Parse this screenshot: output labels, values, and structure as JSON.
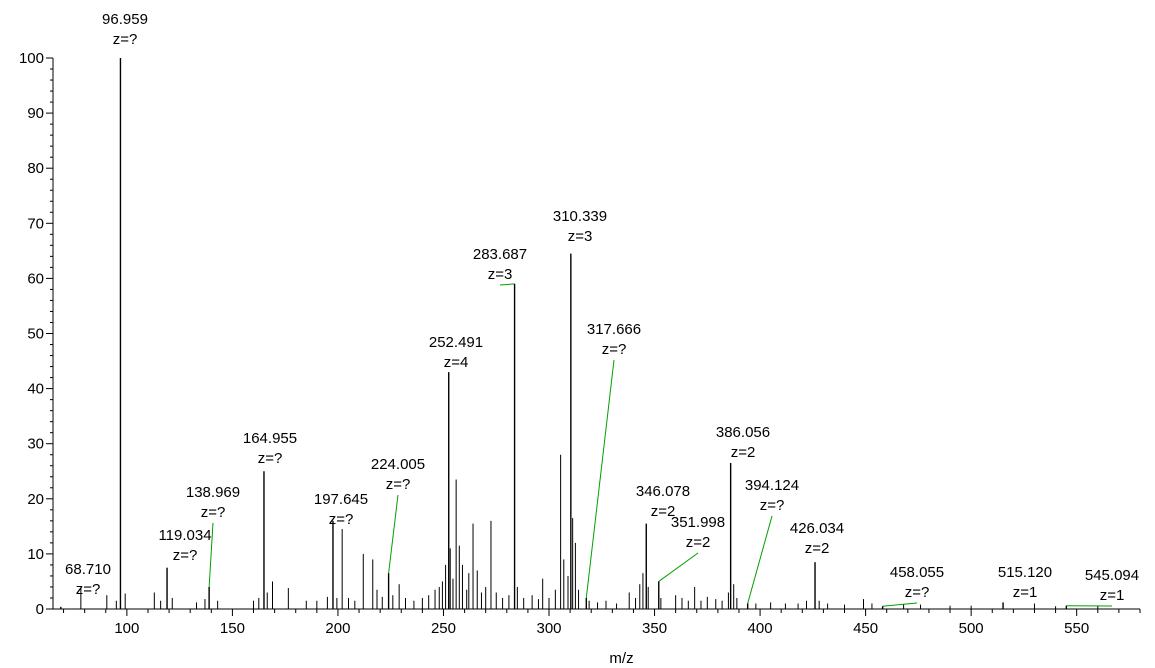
{
  "chart_data": {
    "type": "bar",
    "xlabel": "m/z",
    "ylabel": "",
    "xlim": [
      65,
      580
    ],
    "ylim": [
      0,
      100
    ],
    "x_ticks": [
      100,
      150,
      200,
      250,
      300,
      350,
      400,
      450,
      500,
      550
    ],
    "y_ticks": [
      0,
      10,
      20,
      30,
      40,
      50,
      60,
      70,
      80,
      90,
      100
    ],
    "grid": false,
    "colors": {
      "peak": "#000000",
      "leader": "#00a000"
    },
    "labeled_peaks": [
      {
        "mz": 68.71,
        "intensity": 0.4,
        "label": "68.710",
        "charge": "z=?",
        "leader": false
      },
      {
        "mz": 96.959,
        "intensity": 100,
        "label": "96.959",
        "charge": "z=?",
        "leader": false
      },
      {
        "mz": 119.034,
        "intensity": 7.5,
        "label": "119.034",
        "charge": "z=?",
        "leader": false
      },
      {
        "mz": 138.969,
        "intensity": 4.0,
        "label": "138.969",
        "charge": "z=?",
        "leader": true
      },
      {
        "mz": 164.955,
        "intensity": 25,
        "label": "164.955",
        "charge": "z=?",
        "leader": false
      },
      {
        "mz": 197.645,
        "intensity": 16,
        "label": "197.645",
        "charge": "z=?",
        "leader": false
      },
      {
        "mz": 224.005,
        "intensity": 6.5,
        "label": "224.005",
        "charge": "z=?",
        "leader": true
      },
      {
        "mz": 252.491,
        "intensity": 43,
        "label": "252.491",
        "charge": "z=4",
        "leader": false
      },
      {
        "mz": 283.687,
        "intensity": 59,
        "label": "283.687",
        "charge": "z=3",
        "leader": true
      },
      {
        "mz": 310.339,
        "intensity": 64.5,
        "label": "310.339",
        "charge": "z=3",
        "leader": false
      },
      {
        "mz": 317.666,
        "intensity": 2.0,
        "label": "317.666",
        "charge": "z=?",
        "leader": true
      },
      {
        "mz": 346.078,
        "intensity": 15.5,
        "label": "346.078",
        "charge": "z=2",
        "leader": false
      },
      {
        "mz": 351.998,
        "intensity": 5.0,
        "label": "351.998",
        "charge": "z=2",
        "leader": true
      },
      {
        "mz": 386.056,
        "intensity": 26.5,
        "label": "386.056",
        "charge": "z=2",
        "leader": false
      },
      {
        "mz": 394.124,
        "intensity": 1.0,
        "label": "394.124",
        "charge": "z=?",
        "leader": true
      },
      {
        "mz": 426.034,
        "intensity": 8.5,
        "label": "426.034",
        "charge": "z=2",
        "leader": false
      },
      {
        "mz": 458.055,
        "intensity": 0.5,
        "label": "458.055",
        "charge": "z=?",
        "leader": true
      },
      {
        "mz": 515.12,
        "intensity": 1.2,
        "label": "515.120",
        "charge": "z=1",
        "leader": false
      },
      {
        "mz": 545.094,
        "intensity": 0.6,
        "label": "545.094",
        "charge": "z=1",
        "leader": true
      }
    ],
    "other_peaks": [
      [
        78.2,
        3.8
      ],
      [
        90.5,
        2.5
      ],
      [
        95.0,
        1.5
      ],
      [
        99.2,
        2.8
      ],
      [
        113.0,
        3.0
      ],
      [
        116.0,
        1.5
      ],
      [
        121.5,
        2.0
      ],
      [
        133.0,
        1.2
      ],
      [
        137.0,
        1.8
      ],
      [
        143.0,
        1.5
      ],
      [
        160.0,
        1.5
      ],
      [
        162.5,
        2.0
      ],
      [
        166.5,
        3.0
      ],
      [
        169.0,
        5.0
      ],
      [
        176.5,
        3.8
      ],
      [
        185.0,
        1.5
      ],
      [
        190.0,
        1.5
      ],
      [
        195.0,
        2.2
      ],
      [
        199.5,
        2.0
      ],
      [
        202.0,
        14.5
      ],
      [
        205.0,
        2.0
      ],
      [
        208.0,
        1.5
      ],
      [
        212.0,
        10.0
      ],
      [
        216.5,
        9.0
      ],
      [
        218.5,
        3.5
      ],
      [
        221.0,
        2.2
      ],
      [
        226.0,
        2.5
      ],
      [
        229.0,
        4.5
      ],
      [
        232.0,
        2.0
      ],
      [
        236.0,
        1.5
      ],
      [
        240.0,
        2.0
      ],
      [
        243.0,
        2.5
      ],
      [
        246.0,
        3.5
      ],
      [
        248.0,
        4.0
      ],
      [
        249.5,
        5.0
      ],
      [
        251.0,
        8.0
      ],
      [
        253.2,
        11.0
      ],
      [
        254.5,
        5.5
      ],
      [
        256.0,
        23.5
      ],
      [
        257.5,
        11.5
      ],
      [
        259.0,
        8.0
      ],
      [
        261.0,
        3.5
      ],
      [
        262.0,
        6.5
      ],
      [
        264.0,
        15.5
      ],
      [
        266.0,
        7.0
      ],
      [
        268.0,
        3.0
      ],
      [
        270.0,
        4.0
      ],
      [
        272.5,
        16.0
      ],
      [
        275.0,
        3.0
      ],
      [
        278.0,
        2.0
      ],
      [
        281.0,
        2.5
      ],
      [
        285.0,
        4.0
      ],
      [
        288.0,
        2.0
      ],
      [
        292.0,
        2.5
      ],
      [
        295.0,
        1.8
      ],
      [
        297.0,
        5.5
      ],
      [
        300.0,
        2.0
      ],
      [
        303.0,
        3.5
      ],
      [
        305.5,
        28.0
      ],
      [
        307.0,
        9.0
      ],
      [
        309.0,
        6.0
      ],
      [
        311.2,
        16.5
      ],
      [
        312.5,
        12.0
      ],
      [
        314.0,
        3.5
      ],
      [
        319.0,
        1.5
      ],
      [
        323.0,
        1.2
      ],
      [
        327.0,
        1.5
      ],
      [
        332.0,
        1.0
      ],
      [
        338.0,
        3.0
      ],
      [
        341.0,
        2.0
      ],
      [
        343.0,
        4.5
      ],
      [
        344.5,
        6.5
      ],
      [
        347.0,
        4.0
      ],
      [
        353.0,
        2.0
      ],
      [
        360.0,
        2.5
      ],
      [
        363.0,
        2.0
      ],
      [
        366.0,
        1.5
      ],
      [
        369.0,
        4.0
      ],
      [
        372.0,
        1.5
      ],
      [
        375.0,
        2.2
      ],
      [
        379.0,
        1.8
      ],
      [
        382.0,
        1.5
      ],
      [
        385.0,
        3.0
      ],
      [
        387.5,
        4.5
      ],
      [
        389.0,
        2.0
      ],
      [
        398.0,
        1.0
      ],
      [
        405.0,
        1.2
      ],
      [
        412.0,
        1.0
      ],
      [
        418.0,
        1.0
      ],
      [
        422.0,
        1.5
      ],
      [
        428.0,
        1.5
      ],
      [
        432.0,
        1.0
      ],
      [
        440.0,
        0.8
      ],
      [
        449.0,
        1.8
      ],
      [
        453.0,
        1.0
      ],
      [
        468.0,
        0.8
      ],
      [
        476.0,
        0.8
      ],
      [
        490.0,
        0.6
      ],
      [
        500.0,
        0.6
      ],
      [
        530.0,
        1.0
      ],
      [
        540.0,
        0.5
      ],
      [
        560.0,
        0.5
      ]
    ]
  }
}
